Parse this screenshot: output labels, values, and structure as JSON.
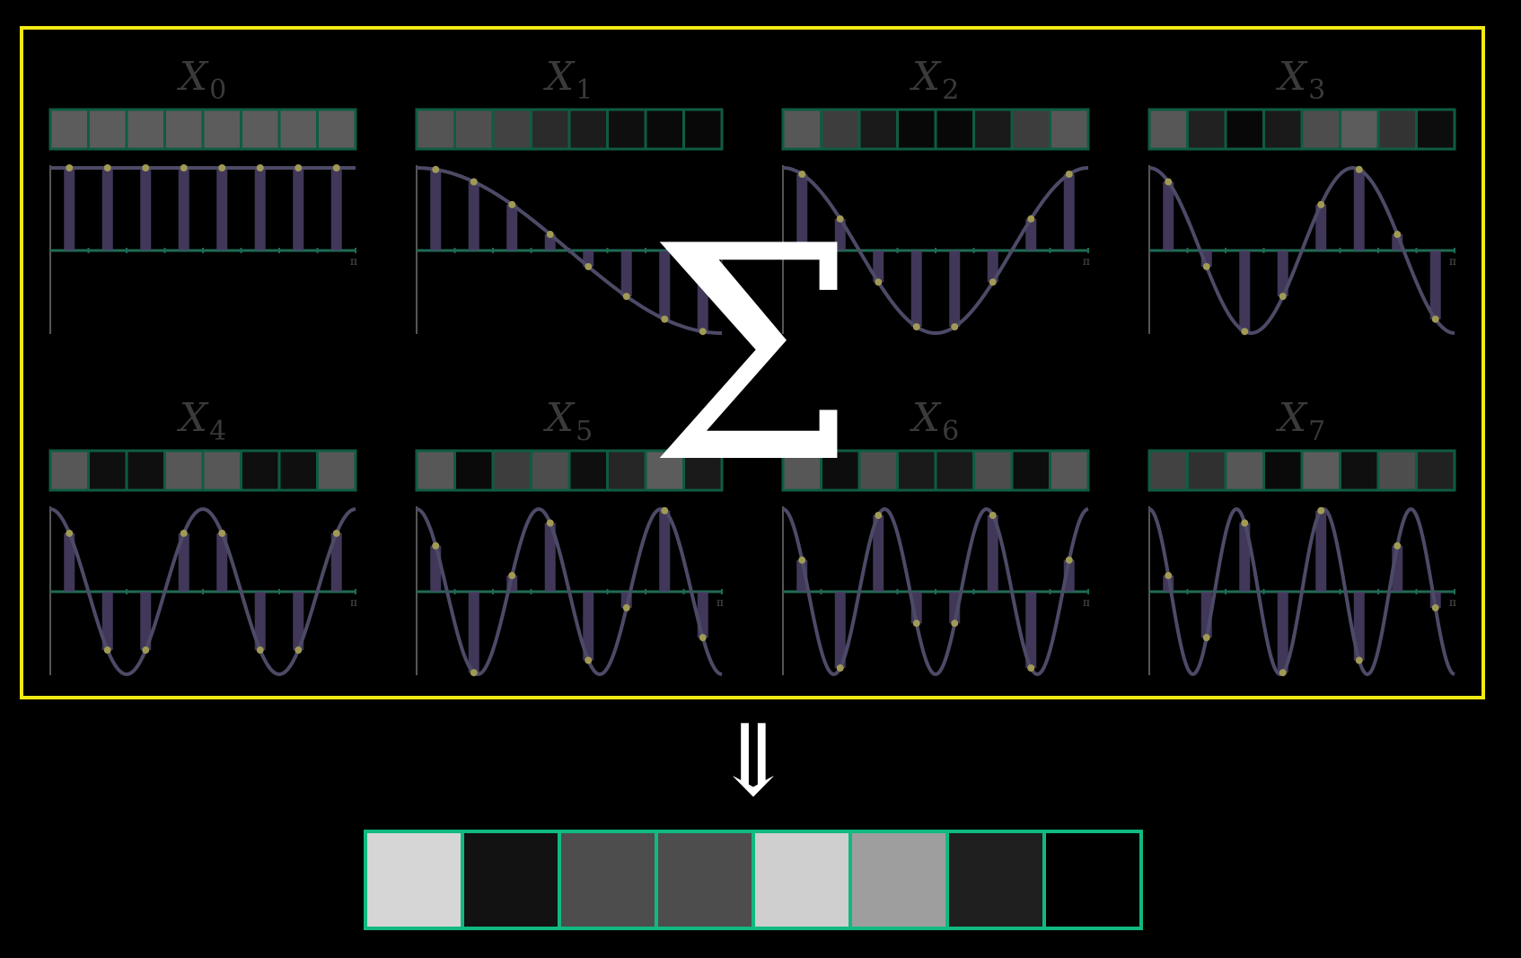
{
  "panels": [
    {
      "label": "X",
      "sub": "0",
      "k": 0,
      "amplitude": 0.74,
      "cells": [
        0.36,
        0.36,
        0.36,
        0.36,
        0.36,
        0.36,
        0.36,
        0.36
      ]
    },
    {
      "label": "X",
      "sub": "1",
      "k": 1,
      "amplitude": 0.74,
      "cells": [
        0.33,
        0.31,
        0.26,
        0.17,
        0.11,
        0.06,
        0.04,
        0.03
      ]
    },
    {
      "label": "X",
      "sub": "2",
      "k": 2,
      "amplitude": 0.74,
      "cells": [
        0.34,
        0.24,
        0.1,
        0.03,
        0.03,
        0.1,
        0.24,
        0.34
      ]
    },
    {
      "label": "X",
      "sub": "3",
      "k": 3,
      "amplitude": 0.74,
      "cells": [
        0.34,
        0.13,
        0.03,
        0.1,
        0.3,
        0.36,
        0.2,
        0.05
      ]
    },
    {
      "label": "X",
      "sub": "4",
      "k": 4,
      "amplitude": 0.74,
      "cells": [
        0.34,
        0.06,
        0.06,
        0.34,
        0.34,
        0.06,
        0.06,
        0.34
      ]
    },
    {
      "label": "X",
      "sub": "5",
      "k": 5,
      "amplitude": 0.74,
      "cells": [
        0.34,
        0.04,
        0.24,
        0.3,
        0.06,
        0.15,
        0.36,
        0.1
      ]
    },
    {
      "label": "X",
      "sub": "6",
      "k": 6,
      "amplitude": 0.74,
      "cells": [
        0.34,
        0.05,
        0.3,
        0.1,
        0.1,
        0.3,
        0.05,
        0.34
      ]
    },
    {
      "label": "X",
      "sub": "7",
      "k": 7,
      "amplitude": 0.74,
      "cells": [
        0.26,
        0.19,
        0.34,
        0.04,
        0.36,
        0.06,
        0.3,
        0.13
      ]
    }
  ],
  "axis_label": "π",
  "sum_symbol": "Σ",
  "arrow_symbol": "⇓",
  "result_cells": [
    0.84,
    0.07,
    0.3,
    0.3,
    0.81,
    0.62,
    0.12,
    0.0
  ],
  "colors": {
    "frame": "#f2ea12",
    "cell_border": "#10b981",
    "wave": "#4c4a66",
    "stem": "#4b4169",
    "dot": "#a09a55",
    "axis": "#555555",
    "text": "#ffffff",
    "label": "#3a3a3a"
  }
}
